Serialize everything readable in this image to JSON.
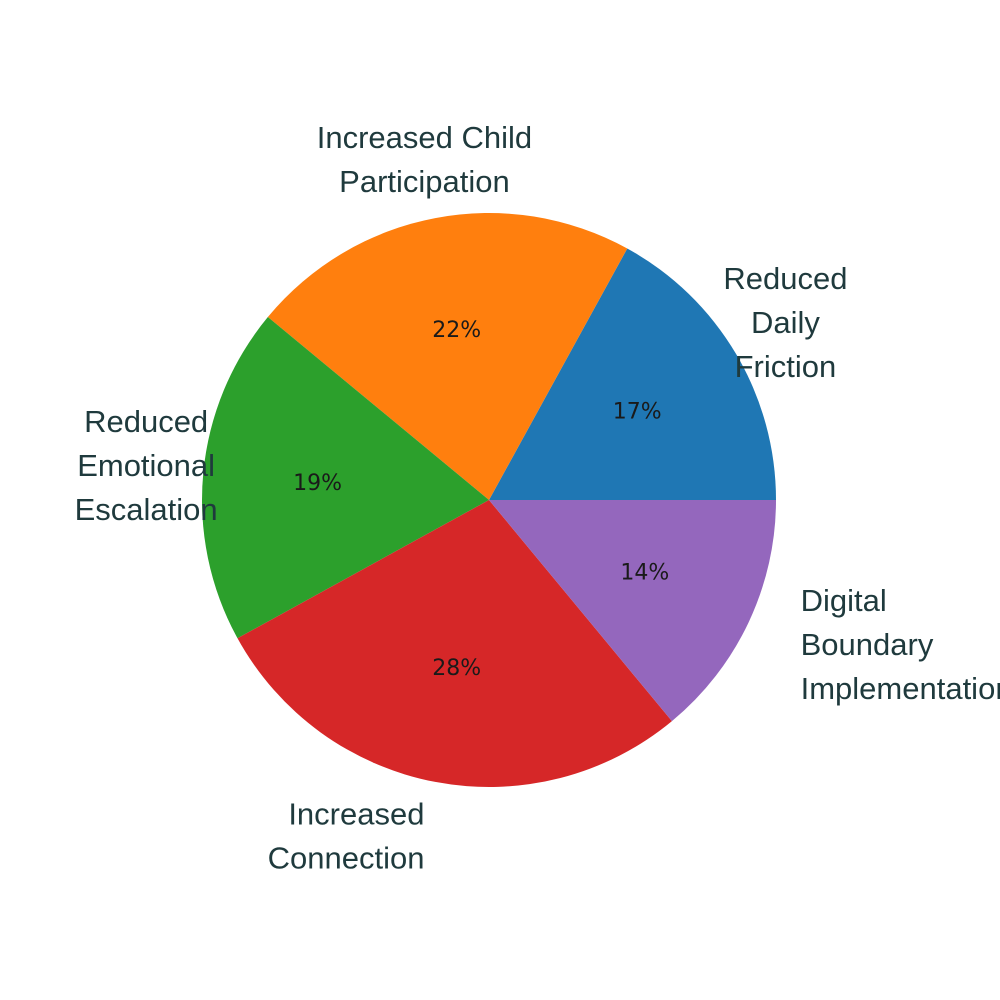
{
  "chart_data": {
    "type": "pie",
    "title": "",
    "start_angle_deg": 0,
    "direction": "counterclockwise",
    "slices": [
      {
        "label": [
          "Reduced",
          "Daily",
          "Friction"
        ],
        "value": 17,
        "pct_label": "17%",
        "color": "#1f77b4",
        "label_align": "middle"
      },
      {
        "label": [
          "Increased Child",
          "Participation"
        ],
        "value": 22,
        "pct_label": "22%",
        "color": "#ff7f0e",
        "label_align": "middle"
      },
      {
        "label": [
          "Reduced",
          "Emotional",
          "Escalation"
        ],
        "value": 19,
        "pct_label": "19%",
        "color": "#2ca02c",
        "label_align": "middle"
      },
      {
        "label": [
          "Increased",
          "Connection"
        ],
        "value": 28,
        "pct_label": "28%",
        "color": "#d62728",
        "label_align": "end"
      },
      {
        "label": [
          "Digital",
          "Boundary",
          "Implementation"
        ],
        "value": 14,
        "pct_label": "14%",
        "color": "#9467bd",
        "label_align": "start"
      }
    ]
  }
}
